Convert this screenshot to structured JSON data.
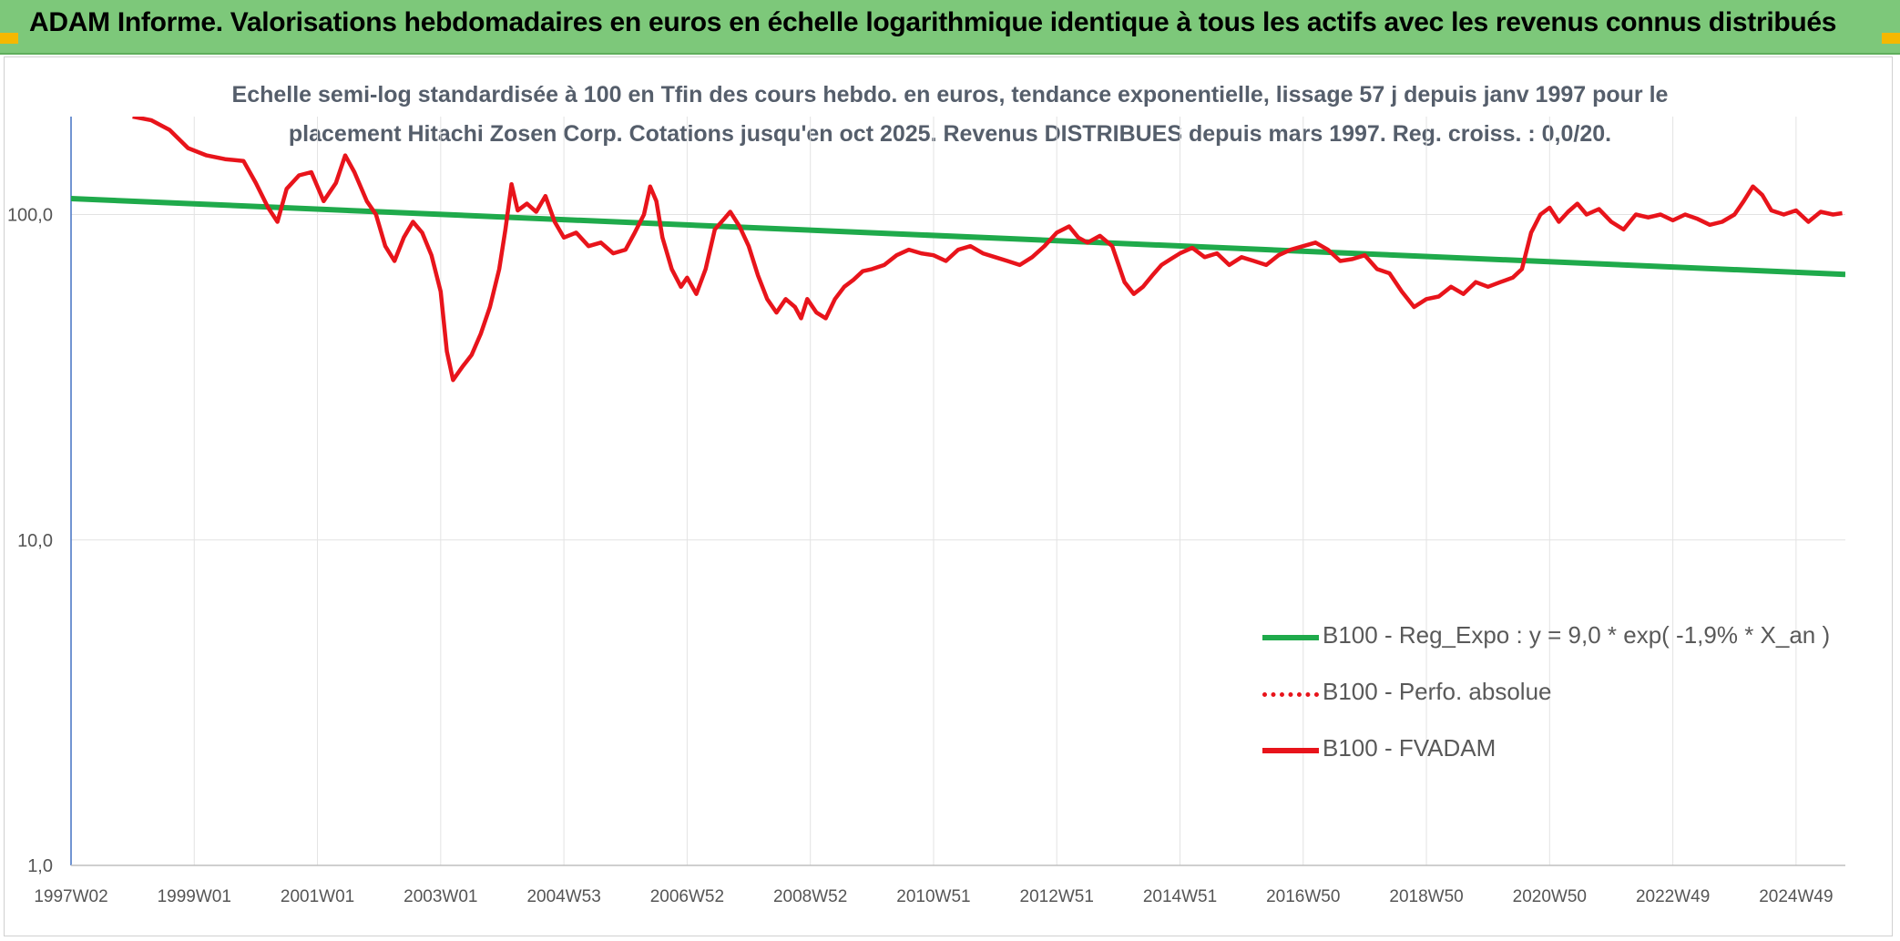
{
  "header": {
    "title": "ADAM Informe. Valorisations hebdomadaires en euros en échelle logarithmique identique à tous les actifs avec les revenus connus distribués"
  },
  "colors": {
    "banner_bg": "#7dc87a",
    "accent_corner": "#f5b800",
    "fvadam": "#e8141b",
    "perfo": "#e8141b",
    "regression": "#1faa4b",
    "grid": "#e3e3e3"
  },
  "chart_data": {
    "type": "line",
    "title_lines": [
      "Echelle semi-log standardisée à 100 en Tfin des cours hebdo. en euros, tendance exponentielle, lissage 57 j depuis janv 1997 pour le",
      "placement Hitachi Zosen Corp. Cotations jusqu'en oct 2025. Revenus DISTRIBUES depuis mars 1997. Reg. croiss. : 0,0/20."
    ],
    "y_scale": "log",
    "ylim": [
      1,
      200
    ],
    "y_ticks": [
      {
        "value": 1,
        "label": "1,0"
      },
      {
        "value": 10,
        "label": "10,0"
      },
      {
        "value": 100,
        "label": "100,0"
      }
    ],
    "xlim": [
      1997.0,
      2025.8
    ],
    "x_ticks": [
      {
        "value": 1997.0,
        "label": "1997W02"
      },
      {
        "value": 1999.0,
        "label": "1999W01"
      },
      {
        "value": 2001.0,
        "label": "2001W01"
      },
      {
        "value": 2003.0,
        "label": "2003W01"
      },
      {
        "value": 2005.0,
        "label": "2004W53"
      },
      {
        "value": 2007.0,
        "label": "2006W52"
      },
      {
        "value": 2009.0,
        "label": "2008W52"
      },
      {
        "value": 2011.0,
        "label": "2010W51"
      },
      {
        "value": 2013.0,
        "label": "2012W51"
      },
      {
        "value": 2015.0,
        "label": "2014W51"
      },
      {
        "value": 2017.0,
        "label": "2016W50"
      },
      {
        "value": 2019.0,
        "label": "2018W50"
      },
      {
        "value": 2021.0,
        "label": "2020W50"
      },
      {
        "value": 2023.0,
        "label": "2022W49"
      },
      {
        "value": 2025.0,
        "label": "2024W49"
      }
    ],
    "grid": "vertical and horizontal",
    "legend_position": "lower-right",
    "series": [
      {
        "name": "B100 - Reg_Expo : y = 9,0 * exp( -1,9% *  X_an )",
        "style": "solid-green",
        "points": [
          [
            1997.0,
            112
          ],
          [
            2025.8,
            65.5
          ]
        ]
      },
      {
        "name": "B100 - Perfo. absolue",
        "style": "dotted-red",
        "points": []
      },
      {
        "name": "B100 - FVADAM",
        "style": "solid-red",
        "points": [
          [
            1998.0,
            200
          ],
          [
            1998.3,
            195
          ],
          [
            1998.6,
            182
          ],
          [
            1998.9,
            160
          ],
          [
            1999.2,
            152
          ],
          [
            1999.5,
            148
          ],
          [
            1999.8,
            146
          ],
          [
            2000.0,
            125
          ],
          [
            2000.2,
            105
          ],
          [
            2000.35,
            95
          ],
          [
            2000.5,
            120
          ],
          [
            2000.7,
            132
          ],
          [
            2000.9,
            135
          ],
          [
            2001.1,
            110
          ],
          [
            2001.3,
            125
          ],
          [
            2001.45,
            152
          ],
          [
            2001.6,
            135
          ],
          [
            2001.8,
            110
          ],
          [
            2001.95,
            100
          ],
          [
            2002.1,
            80
          ],
          [
            2002.25,
            72
          ],
          [
            2002.4,
            85
          ],
          [
            2002.55,
            95
          ],
          [
            2002.7,
            88
          ],
          [
            2002.85,
            75
          ],
          [
            2003.0,
            58
          ],
          [
            2003.1,
            38
          ],
          [
            2003.2,
            31
          ],
          [
            2003.35,
            34
          ],
          [
            2003.5,
            37
          ],
          [
            2003.65,
            43
          ],
          [
            2003.8,
            52
          ],
          [
            2003.95,
            68
          ],
          [
            2004.05,
            90
          ],
          [
            2004.15,
            124
          ],
          [
            2004.25,
            103
          ],
          [
            2004.4,
            108
          ],
          [
            2004.55,
            102
          ],
          [
            2004.7,
            114
          ],
          [
            2004.85,
            95
          ],
          [
            2005.0,
            85
          ],
          [
            2005.2,
            88
          ],
          [
            2005.4,
            80
          ],
          [
            2005.6,
            82
          ],
          [
            2005.8,
            76
          ],
          [
            2006.0,
            78
          ],
          [
            2006.15,
            88
          ],
          [
            2006.3,
            100
          ],
          [
            2006.4,
            122
          ],
          [
            2006.5,
            110
          ],
          [
            2006.6,
            85
          ],
          [
            2006.75,
            68
          ],
          [
            2006.9,
            60
          ],
          [
            2007.0,
            64
          ],
          [
            2007.15,
            57
          ],
          [
            2007.3,
            68
          ],
          [
            2007.45,
            90
          ],
          [
            2007.6,
            97
          ],
          [
            2007.7,
            102
          ],
          [
            2007.85,
            92
          ],
          [
            2008.0,
            80
          ],
          [
            2008.15,
            65
          ],
          [
            2008.3,
            55
          ],
          [
            2008.45,
            50
          ],
          [
            2008.6,
            55
          ],
          [
            2008.75,
            52
          ],
          [
            2008.85,
            48
          ],
          [
            2008.95,
            55
          ],
          [
            2009.1,
            50
          ],
          [
            2009.25,
            48
          ],
          [
            2009.4,
            55
          ],
          [
            2009.55,
            60
          ],
          [
            2009.7,
            63
          ],
          [
            2009.85,
            67
          ],
          [
            2010.0,
            68
          ],
          [
            2010.2,
            70
          ],
          [
            2010.4,
            75
          ],
          [
            2010.6,
            78
          ],
          [
            2010.8,
            76
          ],
          [
            2011.0,
            75
          ],
          [
            2011.2,
            72
          ],
          [
            2011.4,
            78
          ],
          [
            2011.6,
            80
          ],
          [
            2011.8,
            76
          ],
          [
            2012.0,
            74
          ],
          [
            2012.2,
            72
          ],
          [
            2012.4,
            70
          ],
          [
            2012.6,
            74
          ],
          [
            2012.8,
            80
          ],
          [
            2013.0,
            88
          ],
          [
            2013.2,
            92
          ],
          [
            2013.35,
            85
          ],
          [
            2013.5,
            82
          ],
          [
            2013.7,
            86
          ],
          [
            2013.9,
            80
          ],
          [
            2014.1,
            62
          ],
          [
            2014.25,
            57
          ],
          [
            2014.4,
            60
          ],
          [
            2014.55,
            65
          ],
          [
            2014.7,
            70
          ],
          [
            2014.85,
            73
          ],
          [
            2015.0,
            76
          ],
          [
            2015.2,
            79
          ],
          [
            2015.4,
            74
          ],
          [
            2015.6,
            76
          ],
          [
            2015.8,
            70
          ],
          [
            2016.0,
            74
          ],
          [
            2016.2,
            72
          ],
          [
            2016.4,
            70
          ],
          [
            2016.6,
            75
          ],
          [
            2016.8,
            78
          ],
          [
            2017.0,
            80
          ],
          [
            2017.2,
            82
          ],
          [
            2017.4,
            78
          ],
          [
            2017.6,
            72
          ],
          [
            2017.8,
            73
          ],
          [
            2018.0,
            75
          ],
          [
            2018.2,
            68
          ],
          [
            2018.4,
            66
          ],
          [
            2018.6,
            58
          ],
          [
            2018.8,
            52
          ],
          [
            2019.0,
            55
          ],
          [
            2019.2,
            56
          ],
          [
            2019.4,
            60
          ],
          [
            2019.6,
            57
          ],
          [
            2019.8,
            62
          ],
          [
            2020.0,
            60
          ],
          [
            2020.2,
            62
          ],
          [
            2020.4,
            64
          ],
          [
            2020.55,
            68
          ],
          [
            2020.7,
            88
          ],
          [
            2020.85,
            100
          ],
          [
            2021.0,
            105
          ],
          [
            2021.15,
            95
          ],
          [
            2021.3,
            102
          ],
          [
            2021.45,
            108
          ],
          [
            2021.6,
            100
          ],
          [
            2021.8,
            104
          ],
          [
            2022.0,
            95
          ],
          [
            2022.2,
            90
          ],
          [
            2022.4,
            100
          ],
          [
            2022.6,
            98
          ],
          [
            2022.8,
            100
          ],
          [
            2023.0,
            96
          ],
          [
            2023.2,
            100
          ],
          [
            2023.4,
            97
          ],
          [
            2023.6,
            93
          ],
          [
            2023.8,
            95
          ],
          [
            2024.0,
            100
          ],
          [
            2024.15,
            110
          ],
          [
            2024.3,
            122
          ],
          [
            2024.45,
            115
          ],
          [
            2024.6,
            103
          ],
          [
            2024.8,
            100
          ],
          [
            2025.0,
            103
          ],
          [
            2025.2,
            95
          ],
          [
            2025.4,
            102
          ],
          [
            2025.6,
            100
          ],
          [
            2025.75,
            101
          ]
        ]
      }
    ]
  }
}
